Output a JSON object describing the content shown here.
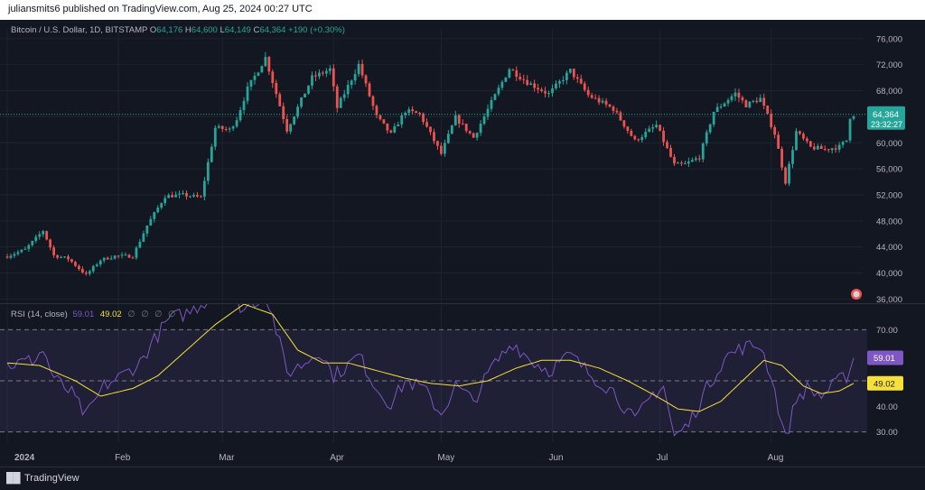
{
  "header": {
    "attribution": "juliansmits6 published on TradingView.com, Aug 25, 2024 00:27 UTC"
  },
  "legend": {
    "symbol": "Bitcoin / U.S. Dollar, 1D, BITSTAMP",
    "open_label": "O",
    "open": "64,176",
    "high_label": "H",
    "high": "64,600",
    "low_label": "L",
    "low": "64,149",
    "close_label": "C",
    "close": "64,364",
    "change": "+190 (+0.30%)"
  },
  "price_badge": {
    "price": "64,364",
    "countdown": "23:32:27"
  },
  "rsi": {
    "label": "RSI (14, close)",
    "value": "59.01",
    "ma_value": "49.02",
    "options": "∅ ∅ ∅ ∅",
    "badge_value": "59.01",
    "badge_ma": "49.02"
  },
  "colors": {
    "up": "#26a69a",
    "down": "#ef5350",
    "rsi": "#7e57c2",
    "rsi_ma": "#f7e03a",
    "bg": "#131722"
  },
  "footer": {
    "brand": "TradingView",
    "logo_icon": "tradingview-logo-icon"
  },
  "chart_data": [
    {
      "type": "candlestick",
      "title": "Bitcoin / U.S. Dollar, 1D, BITSTAMP",
      "y_ticks": [
        "76,000",
        "72,000",
        "68,000",
        "64,000",
        "60,000",
        "56,000",
        "52,000",
        "48,000",
        "44,000",
        "40,000",
        "36,000"
      ],
      "ylim": [
        35500,
        77500
      ],
      "x_ticks": [
        "2024",
        "Feb",
        "Mar",
        "Apr",
        "May",
        "Jun",
        "Jul",
        "Aug"
      ],
      "last_price": 64364,
      "anchors": [
        [
          "2024-01-01",
          42600
        ],
        [
          "2024-01-06",
          43600
        ],
        [
          "2024-01-11",
          46500
        ],
        [
          "2024-01-14",
          42700
        ],
        [
          "2024-01-18",
          42200
        ],
        [
          "2024-01-23",
          39700
        ],
        [
          "2024-01-27",
          42000
        ],
        [
          "2024-01-31",
          42600
        ],
        [
          "2024-02-05",
          42600
        ],
        [
          "2024-02-09",
          47300
        ],
        [
          "2024-02-14",
          51800
        ],
        [
          "2024-02-19",
          52000
        ],
        [
          "2024-02-24",
          51600
        ],
        [
          "2024-02-28",
          62300
        ],
        [
          "2024-03-03",
          62000
        ],
        [
          "2024-03-05",
          63700
        ],
        [
          "2024-03-08",
          68300
        ],
        [
          "2024-03-13",
          73100
        ],
        [
          "2024-03-19",
          62000
        ],
        [
          "2024-03-26",
          70000
        ],
        [
          "2024-03-31",
          71300
        ],
        [
          "2024-04-02",
          65400
        ],
        [
          "2024-04-08",
          72000
        ],
        [
          "2024-04-13",
          64000
        ],
        [
          "2024-04-17",
          61300
        ],
        [
          "2024-04-21",
          64900
        ],
        [
          "2024-04-25",
          64400
        ],
        [
          "2024-05-01",
          58300
        ],
        [
          "2024-05-05",
          63900
        ],
        [
          "2024-05-10",
          60800
        ],
        [
          "2024-05-15",
          66200
        ],
        [
          "2024-05-20",
          71400
        ],
        [
          "2024-05-25",
          69300
        ],
        [
          "2024-05-31",
          67500
        ],
        [
          "2024-06-06",
          71100
        ],
        [
          "2024-06-11",
          67300
        ],
        [
          "2024-06-18",
          65200
        ],
        [
          "2024-06-24",
          60300
        ],
        [
          "2024-06-30",
          62700
        ],
        [
          "2024-07-05",
          56600
        ],
        [
          "2024-07-08",
          56700
        ],
        [
          "2024-07-12",
          57800
        ],
        [
          "2024-07-16",
          64800
        ],
        [
          "2024-07-22",
          67600
        ],
        [
          "2024-07-25",
          65800
        ],
        [
          "2024-07-29",
          66800
        ],
        [
          "2024-08-02",
          61400
        ],
        [
          "2024-08-05",
          54000
        ],
        [
          "2024-08-08",
          61700
        ],
        [
          "2024-08-12",
          59300
        ],
        [
          "2024-08-16",
          59000
        ],
        [
          "2024-08-20",
          59400
        ],
        [
          "2024-08-22",
          60400
        ],
        [
          "2024-08-23",
          64000
        ],
        [
          "2024-08-24",
          64364
        ]
      ]
    },
    {
      "type": "line",
      "title": "RSI (14, close)",
      "y_ticks": [
        "70.00",
        "40.00",
        "30.00"
      ],
      "ylim": [
        26,
        80
      ],
      "bands": [
        70,
        50,
        30
      ],
      "series": [
        {
          "name": "RSI",
          "anchors": [
            [
              "2024-01-01",
              56
            ],
            [
              "2024-01-08",
              58
            ],
            [
              "2024-01-11",
              62
            ],
            [
              "2024-01-14",
              51
            ],
            [
              "2024-01-19",
              45
            ],
            [
              "2024-01-23",
              36
            ],
            [
              "2024-01-28",
              48
            ],
            [
              "2024-02-02",
              52
            ],
            [
              "2024-02-07",
              57
            ],
            [
              "2024-02-10",
              64
            ],
            [
              "2024-02-15",
              74
            ],
            [
              "2024-02-21",
              77
            ],
            [
              "2024-02-27",
              83
            ],
            [
              "2024-03-02",
              85
            ],
            [
              "2024-03-07",
              78
            ],
            [
              "2024-03-13",
              84
            ],
            [
              "2024-03-16",
              70
            ],
            [
              "2024-03-19",
              53
            ],
            [
              "2024-03-24",
              57
            ],
            [
              "2024-03-28",
              62
            ],
            [
              "2024-04-01",
              52
            ],
            [
              "2024-04-05",
              56
            ],
            [
              "2024-04-08",
              60
            ],
            [
              "2024-04-13",
              47
            ],
            [
              "2024-04-17",
              41
            ],
            [
              "2024-04-21",
              50
            ],
            [
              "2024-04-26",
              47
            ],
            [
              "2024-05-01",
              37
            ],
            [
              "2024-05-05",
              48
            ],
            [
              "2024-05-10",
              42
            ],
            [
              "2024-05-15",
              55
            ],
            [
              "2024-05-21",
              65
            ],
            [
              "2024-05-26",
              58
            ],
            [
              "2024-05-31",
              54
            ],
            [
              "2024-06-06",
              60
            ],
            [
              "2024-06-12",
              52
            ],
            [
              "2024-06-18",
              46
            ],
            [
              "2024-06-24",
              34
            ],
            [
              "2024-06-29",
              45
            ],
            [
              "2024-07-02",
              48
            ],
            [
              "2024-07-05",
              28
            ],
            [
              "2024-07-09",
              33
            ],
            [
              "2024-07-14",
              47
            ],
            [
              "2024-07-19",
              59
            ],
            [
              "2024-07-24",
              63
            ],
            [
              "2024-07-29",
              64
            ],
            [
              "2024-08-01",
              52
            ],
            [
              "2024-08-05",
              27
            ],
            [
              "2024-08-08",
              43
            ],
            [
              "2024-08-11",
              47
            ],
            [
              "2024-08-15",
              44
            ],
            [
              "2024-08-19",
              49
            ],
            [
              "2024-08-22",
              52
            ],
            [
              "2024-08-24",
              59
            ]
          ]
        },
        {
          "name": "RSI-based MA",
          "anchors": [
            [
              "2024-01-01",
              57
            ],
            [
              "2024-01-10",
              56
            ],
            [
              "2024-01-20",
              50
            ],
            [
              "2024-01-27",
              44
            ],
            [
              "2024-02-05",
              47
            ],
            [
              "2024-02-12",
              52
            ],
            [
              "2024-02-20",
              62
            ],
            [
              "2024-02-28",
              72
            ],
            [
              "2024-03-07",
              80
            ],
            [
              "2024-03-15",
              76
            ],
            [
              "2024-03-22",
              62
            ],
            [
              "2024-03-29",
              57
            ],
            [
              "2024-04-05",
              57
            ],
            [
              "2024-04-13",
              54
            ],
            [
              "2024-04-21",
              51
            ],
            [
              "2024-04-28",
              49
            ],
            [
              "2024-05-06",
              48
            ],
            [
              "2024-05-14",
              50
            ],
            [
              "2024-05-22",
              55
            ],
            [
              "2024-05-29",
              58
            ],
            [
              "2024-06-06",
              58
            ],
            [
              "2024-06-14",
              55
            ],
            [
              "2024-06-22",
              50
            ],
            [
              "2024-06-30",
              44
            ],
            [
              "2024-07-06",
              39
            ],
            [
              "2024-07-12",
              38
            ],
            [
              "2024-07-18",
              42
            ],
            [
              "2024-07-24",
              50
            ],
            [
              "2024-07-30",
              58
            ],
            [
              "2024-08-04",
              56
            ],
            [
              "2024-08-10",
              48
            ],
            [
              "2024-08-15",
              45
            ],
            [
              "2024-08-20",
              46
            ],
            [
              "2024-08-24",
              49
            ]
          ]
        }
      ]
    }
  ]
}
